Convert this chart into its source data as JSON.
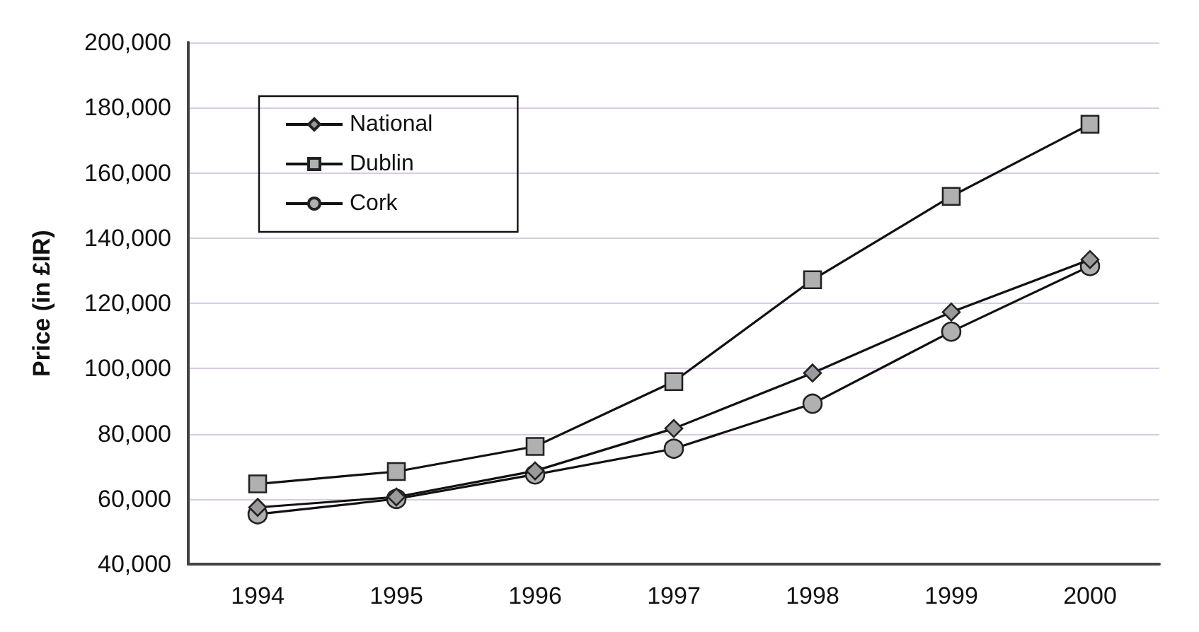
{
  "chart_data": {
    "type": "line",
    "ylabel": "Price (in £IR)",
    "categories": [
      "1994",
      "1995",
      "1996",
      "1997",
      "1998",
      "1999",
      "2000"
    ],
    "series": [
      {
        "name": "National",
        "color": "#9a9a9a",
        "marker": "diamond",
        "values": [
          57400,
          60600,
          68600,
          81600,
          98600,
          117300,
          133400
        ]
      },
      {
        "name": "Dublin",
        "color": "#b0b0b0",
        "marker": "square",
        "values": [
          64600,
          68400,
          76100,
          96000,
          127200,
          152800,
          174900
        ]
      },
      {
        "name": "Cork",
        "color": "#b0b0b0",
        "marker": "circle",
        "values": [
          55300,
          60000,
          67500,
          75400,
          89200,
          111300,
          131400
        ]
      }
    ],
    "ylim": [
      40000,
      200000
    ],
    "yticks": [
      {
        "value": 40000,
        "label": "40,000"
      },
      {
        "value": 60000,
        "label": "60,000"
      },
      {
        "value": 80000,
        "label": "80,000"
      },
      {
        "value": 100000,
        "label": "100,000"
      },
      {
        "value": 120000,
        "label": "120,000"
      },
      {
        "value": 140000,
        "label": "140,000"
      },
      {
        "value": 160000,
        "label": "160,000"
      },
      {
        "value": 180000,
        "label": "180,000"
      },
      {
        "value": 200000,
        "label": "200,000"
      }
    ],
    "grid": "y",
    "legend": "top left",
    "line_style": "solid"
  }
}
